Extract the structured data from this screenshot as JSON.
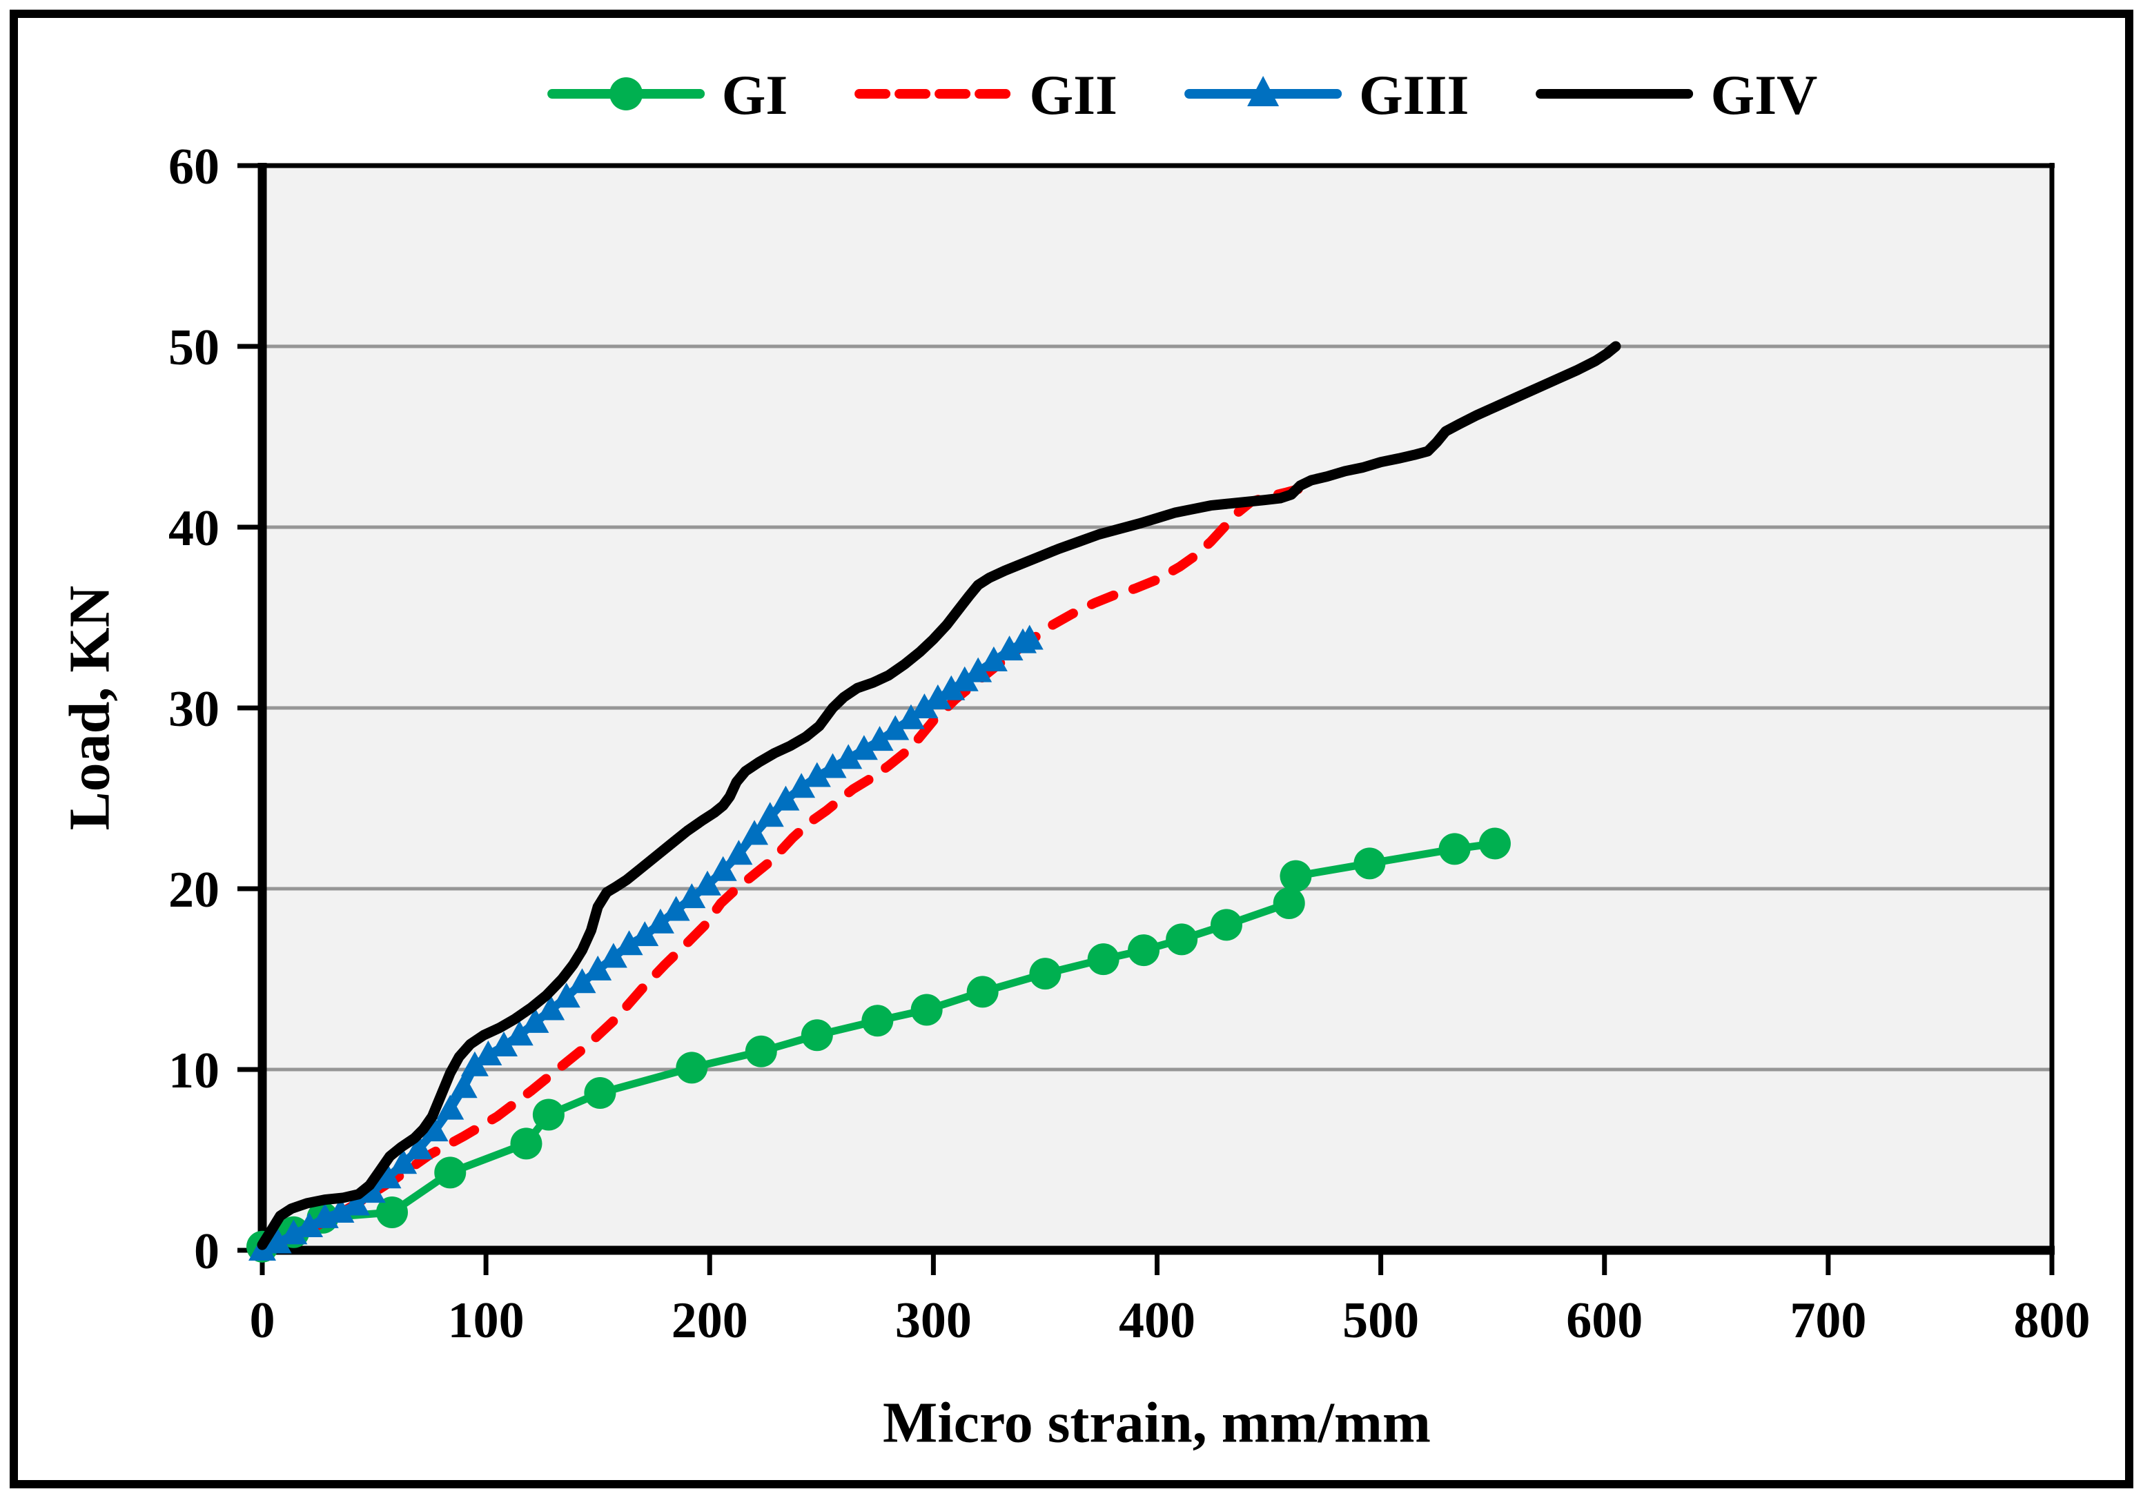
{
  "chart_data": {
    "type": "line",
    "title": "",
    "xlabel": "Micro strain, mm/mm",
    "ylabel": "Load, KN",
    "xlim": [
      0,
      800
    ],
    "ylim": [
      0,
      60
    ],
    "xticks": [
      0,
      100,
      200,
      300,
      400,
      500,
      600,
      700,
      800
    ],
    "yticks": [
      0,
      10,
      20,
      30,
      40,
      50,
      60
    ],
    "grid": "horizontal",
    "plot_bg": "#F2F2F2",
    "grid_color": "#969696",
    "axis_color": "#000000",
    "legend_position": "top-center",
    "series": [
      {
        "name": "GI",
        "color": "#00B050",
        "marker": "circle",
        "dash": "solid",
        "points": [
          [
            0,
            0.2
          ],
          [
            14,
            1.0
          ],
          [
            27,
            1.8
          ],
          [
            58,
            2.1
          ],
          [
            84,
            4.3
          ],
          [
            118,
            5.9
          ],
          [
            128,
            7.5
          ],
          [
            151,
            8.7
          ],
          [
            192,
            10.1
          ],
          [
            223,
            11.0
          ],
          [
            248,
            11.9
          ],
          [
            275,
            12.7
          ],
          [
            297,
            13.3
          ],
          [
            322,
            14.3
          ],
          [
            350,
            15.3
          ],
          [
            376,
            16.1
          ],
          [
            394,
            16.6
          ],
          [
            411,
            17.2
          ],
          [
            431,
            18.0
          ],
          [
            459,
            19.2
          ],
          [
            462,
            20.7
          ],
          [
            495,
            21.4
          ],
          [
            533,
            22.2
          ],
          [
            551,
            22.5
          ]
        ]
      },
      {
        "name": "GII",
        "color": "#FF0000",
        "marker": "none",
        "dash": "dashed",
        "points": [
          [
            0,
            0
          ],
          [
            15,
            0.8
          ],
          [
            30,
            1.7
          ],
          [
            45,
            2.8
          ],
          [
            60,
            4.0
          ],
          [
            75,
            5.3
          ],
          [
            90,
            6.3
          ],
          [
            105,
            7.4
          ],
          [
            120,
            8.8
          ],
          [
            132,
            10.0
          ],
          [
            145,
            11.3
          ],
          [
            158,
            12.8
          ],
          [
            170,
            14.5
          ],
          [
            180,
            15.8
          ],
          [
            190,
            17.0
          ],
          [
            198,
            18.0
          ],
          [
            205,
            19.2
          ],
          [
            212,
            20.0
          ],
          [
            220,
            20.8
          ],
          [
            228,
            21.6
          ],
          [
            237,
            22.8
          ],
          [
            245,
            23.7
          ],
          [
            252,
            24.3
          ],
          [
            258,
            24.9
          ],
          [
            264,
            25.5
          ],
          [
            272,
            26.1
          ],
          [
            280,
            26.8
          ],
          [
            290,
            27.8
          ],
          [
            300,
            29.3
          ],
          [
            310,
            30.5
          ],
          [
            318,
            31.3
          ],
          [
            326,
            32.1
          ],
          [
            334,
            32.9
          ],
          [
            342,
            33.6
          ],
          [
            352,
            34.5
          ],
          [
            362,
            35.2
          ],
          [
            372,
            35.8
          ],
          [
            382,
            36.3
          ],
          [
            390,
            36.6
          ],
          [
            400,
            37.1
          ],
          [
            410,
            37.8
          ],
          [
            418,
            38.5
          ],
          [
            424,
            39.2
          ],
          [
            430,
            40.0
          ],
          [
            436,
            40.8
          ],
          [
            442,
            41.4
          ],
          [
            450,
            41.7
          ],
          [
            457,
            41.9
          ],
          [
            463,
            42.1
          ]
        ]
      },
      {
        "name": "GIII",
        "color": "#0070C0",
        "marker": "triangle",
        "dash": "solid",
        "points": [
          [
            0,
            0
          ],
          [
            7,
            0.4
          ],
          [
            14,
            0.9
          ],
          [
            21,
            1.3
          ],
          [
            28,
            1.8
          ],
          [
            35,
            2.1
          ],
          [
            42,
            2.5
          ],
          [
            49,
            3.2
          ],
          [
            56,
            4.0
          ],
          [
            63,
            4.8
          ],
          [
            70,
            5.6
          ],
          [
            77,
            6.6
          ],
          [
            84,
            7.8
          ],
          [
            90,
            9.0
          ],
          [
            95,
            10.2
          ],
          [
            101,
            10.8
          ],
          [
            108,
            11.3
          ],
          [
            115,
            11.9
          ],
          [
            122,
            12.6
          ],
          [
            129,
            13.3
          ],
          [
            136,
            14.0
          ],
          [
            143,
            14.8
          ],
          [
            150,
            15.5
          ],
          [
            157,
            16.2
          ],
          [
            164,
            16.9
          ],
          [
            171,
            17.4
          ],
          [
            178,
            18.1
          ],
          [
            185,
            18.8
          ],
          [
            192,
            19.5
          ],
          [
            199,
            20.2
          ],
          [
            206,
            21.0
          ],
          [
            213,
            21.9
          ],
          [
            220,
            23.0
          ],
          [
            227,
            24.0
          ],
          [
            234,
            24.9
          ],
          [
            241,
            25.6
          ],
          [
            248,
            26.2
          ],
          [
            255,
            26.7
          ],
          [
            262,
            27.2
          ],
          [
            269,
            27.7
          ],
          [
            276,
            28.2
          ],
          [
            283,
            28.8
          ],
          [
            290,
            29.4
          ],
          [
            296,
            30.0
          ],
          [
            302,
            30.5
          ],
          [
            308,
            31.0
          ],
          [
            314,
            31.5
          ],
          [
            320,
            32.0
          ],
          [
            327,
            32.6
          ],
          [
            334,
            33.2
          ],
          [
            340,
            33.6
          ],
          [
            343,
            33.8
          ]
        ]
      },
      {
        "name": "GIV",
        "color": "#000000",
        "marker": "none",
        "dash": "solid",
        "points": [
          [
            0,
            0.3
          ],
          [
            4,
            1.1
          ],
          [
            8,
            1.9
          ],
          [
            13,
            2.3
          ],
          [
            20,
            2.6
          ],
          [
            28,
            2.8
          ],
          [
            36,
            2.9
          ],
          [
            43,
            3.1
          ],
          [
            48,
            3.6
          ],
          [
            52,
            4.3
          ],
          [
            57,
            5.2
          ],
          [
            62,
            5.7
          ],
          [
            68,
            6.2
          ],
          [
            72,
            6.7
          ],
          [
            76,
            7.4
          ],
          [
            80,
            8.6
          ],
          [
            84,
            9.8
          ],
          [
            88,
            10.7
          ],
          [
            93,
            11.4
          ],
          [
            99,
            11.9
          ],
          [
            106,
            12.3
          ],
          [
            113,
            12.8
          ],
          [
            120,
            13.4
          ],
          [
            127,
            14.1
          ],
          [
            134,
            15.0
          ],
          [
            139,
            15.8
          ],
          [
            143,
            16.6
          ],
          [
            147,
            17.7
          ],
          [
            150,
            19.0
          ],
          [
            154,
            19.8
          ],
          [
            158,
            20.1
          ],
          [
            163,
            20.5
          ],
          [
            169,
            21.1
          ],
          [
            176,
            21.8
          ],
          [
            183,
            22.5
          ],
          [
            190,
            23.2
          ],
          [
            197,
            23.8
          ],
          [
            202,
            24.2
          ],
          [
            206,
            24.6
          ],
          [
            209,
            25.1
          ],
          [
            212,
            25.9
          ],
          [
            216,
            26.5
          ],
          [
            222,
            27.0
          ],
          [
            229,
            27.5
          ],
          [
            236,
            27.9
          ],
          [
            243,
            28.4
          ],
          [
            249,
            29.0
          ],
          [
            255,
            30.0
          ],
          [
            260,
            30.6
          ],
          [
            266,
            31.1
          ],
          [
            273,
            31.4
          ],
          [
            280,
            31.8
          ],
          [
            287,
            32.4
          ],
          [
            294,
            33.1
          ],
          [
            300,
            33.8
          ],
          [
            306,
            34.6
          ],
          [
            311,
            35.4
          ],
          [
            316,
            36.2
          ],
          [
            320,
            36.8
          ],
          [
            325,
            37.2
          ],
          [
            332,
            37.6
          ],
          [
            340,
            38.0
          ],
          [
            348,
            38.4
          ],
          [
            356,
            38.8
          ],
          [
            365,
            39.2
          ],
          [
            374,
            39.6
          ],
          [
            383,
            39.9
          ],
          [
            392,
            40.2
          ],
          [
            400,
            40.5
          ],
          [
            408,
            40.8
          ],
          [
            416,
            41.0
          ],
          [
            424,
            41.2
          ],
          [
            432,
            41.3
          ],
          [
            440,
            41.4
          ],
          [
            448,
            41.5
          ],
          [
            455,
            41.6
          ],
          [
            460,
            41.8
          ],
          [
            464,
            42.3
          ],
          [
            469,
            42.6
          ],
          [
            476,
            42.8
          ],
          [
            484,
            43.1
          ],
          [
            492,
            43.3
          ],
          [
            500,
            43.6
          ],
          [
            508,
            43.8
          ],
          [
            515,
            44.0
          ],
          [
            521,
            44.2
          ],
          [
            525,
            44.7
          ],
          [
            529,
            45.3
          ],
          [
            535,
            45.7
          ],
          [
            543,
            46.2
          ],
          [
            552,
            46.7
          ],
          [
            561,
            47.2
          ],
          [
            570,
            47.7
          ],
          [
            579,
            48.2
          ],
          [
            588,
            48.7
          ],
          [
            596,
            49.2
          ],
          [
            601,
            49.6
          ],
          [
            605,
            50.0
          ]
        ]
      }
    ]
  }
}
